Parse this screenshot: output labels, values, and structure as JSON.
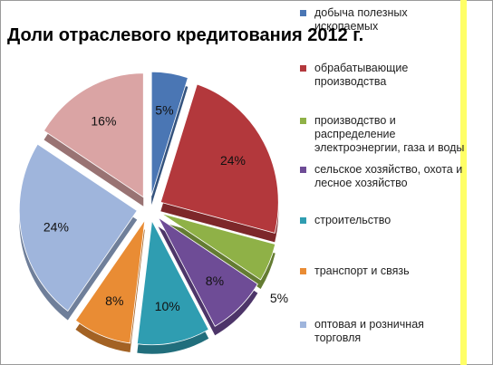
{
  "chart_data": {
    "type": "pie",
    "title": "Доли отраслевого кредитования 2012 г.",
    "slices": [
      {
        "label": "добыча полезных ископаемых",
        "value": 5,
        "value_label": "5%",
        "color": "#4a76b4"
      },
      {
        "label": "обрабатывающие производства",
        "value": 24,
        "value_label": "24%",
        "color": "#b3383c"
      },
      {
        "label": "производство и распределение электроэнергии, газа и воды",
        "value": 5,
        "value_label": "5%",
        "color": "#8fb147"
      },
      {
        "label": "сельское хозяйство, охота и лесное хозяйство",
        "value": 8,
        "value_label": "8%",
        "color": "#6e4c96"
      },
      {
        "label": "строительство",
        "value": 10,
        "value_label": "10%",
        "color": "#2f9db1"
      },
      {
        "label": "транспорт и связь",
        "value": 8,
        "value_label": "8%",
        "color": "#e98c34"
      },
      {
        "label": "оптовая и розничная торговля",
        "value": 24,
        "value_label": "24%",
        "color": "#9fb5dc"
      },
      {
        "label": "",
        "value": 16,
        "value_label": "16%",
        "color": "#daa4a4"
      }
    ],
    "legend_position": "right",
    "exploded": true,
    "style": "3d"
  }
}
